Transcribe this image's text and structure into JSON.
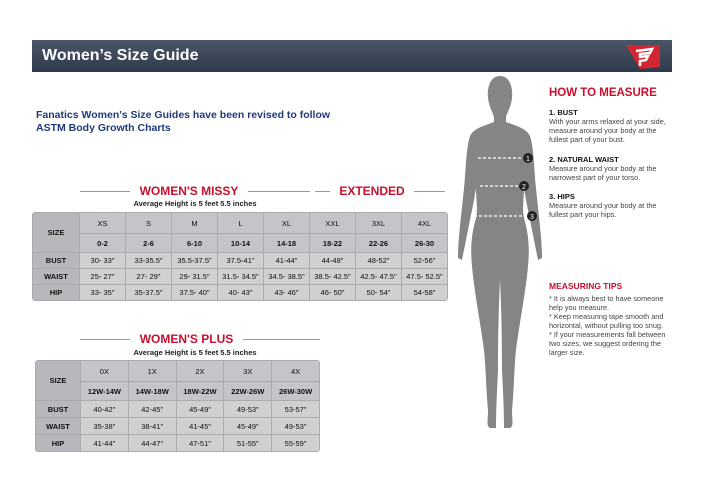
{
  "header": {
    "title": "Women’s Size Guide"
  },
  "intro": {
    "lines": [
      "Fanatics Women's Size Guides have been revised to follow",
      "ASTM Body Growth Charts"
    ]
  },
  "missy": {
    "title": "WOMEN'S MISSY",
    "extended_title": "EXTENDED",
    "subtitle": "Average Height is 5 feet 5.5 inches",
    "size_label": "SIZE",
    "sizes": [
      "XS",
      "S",
      "M",
      "L",
      "XL",
      "XXL",
      "3XL",
      "4XL"
    ],
    "numbers": [
      "0-2",
      "2-6",
      "6-10",
      "10-14",
      "14-18",
      "18-22",
      "22-26",
      "26-30"
    ],
    "rows": [
      {
        "label": "BUST",
        "values": [
          "30- 33\"",
          "33-35.5\"",
          "35.5-37.5\"",
          "37.5-41\"",
          "41-44\"",
          "44-48\"",
          "48-52\"",
          "52-56\""
        ]
      },
      {
        "label": "WAIST",
        "values": [
          "25- 27\"",
          "27- 29\"",
          "29- 31.5\"",
          "31.5- 34.5\"",
          "34.5- 38.5\"",
          "38.5- 42.5\"",
          "42.5- 47.5\"",
          "47.5- 52.5\""
        ]
      },
      {
        "label": "HIP",
        "values": [
          "33- 35\"",
          "35-37.5\"",
          "37.5- 40\"",
          "40- 43\"",
          "43- 46\"",
          "46- 50\"",
          "50- 54\"",
          "54-58\""
        ]
      }
    ]
  },
  "plus": {
    "title": "WOMEN'S PLUS",
    "subtitle": "Average Height is 5 feet 5.5 inches",
    "size_label": "SIZE",
    "sizes": [
      "0X",
      "1X",
      "2X",
      "3X",
      "4X"
    ],
    "numbers": [
      "12W-14W",
      "14W-18W",
      "18W-22W",
      "22W-26W",
      "26W-30W"
    ],
    "rows": [
      {
        "label": "BUST",
        "values": [
          "40-42\"",
          "42-45\"",
          "45-49\"",
          "49-53\"",
          "53-57\""
        ]
      },
      {
        "label": "WAIST",
        "values": [
          "35-38\"",
          "38-41\"",
          "41-45\"",
          "45-49\"",
          "49-53\""
        ]
      },
      {
        "label": "HIP",
        "values": [
          "41-44\"",
          "44-47\"",
          "47-51\"",
          "51-55\"",
          "55-59\""
        ]
      }
    ]
  },
  "figure": {
    "markers": [
      "1",
      "2",
      "3"
    ]
  },
  "how_to_measure": {
    "title": "HOW TO MEASURE",
    "items": [
      {
        "heading": "1. BUST",
        "text": "With your arms relaxed at your side, measure around your body at the fullest part of your bust."
      },
      {
        "heading": "2. NATURAL WAIST",
        "text": "Measure around your body at the narrowest part of your torso."
      },
      {
        "heading": "3. HIPS",
        "text": "Measure around your body at the fullest part your hips."
      }
    ]
  },
  "measuring_tips": {
    "title": "MEASURING TIPS",
    "tips": [
      "* It is always best to have someone help you measure.",
      "* Keep measuring tape smooth and horizontal, without pulling too snug.",
      "* If your measurements fall between two sizes, we suggest ordering the larger size."
    ]
  }
}
